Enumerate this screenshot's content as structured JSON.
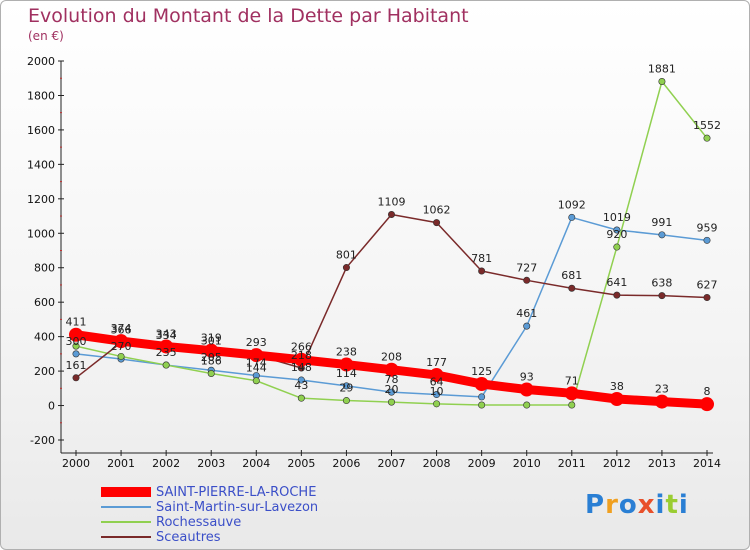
{
  "header": {
    "title": "Evolution du Montant de la Dette par Habitant",
    "subtitle": "(en €)"
  },
  "logo": {
    "text": "Proxiti",
    "letters": [
      "P",
      "r",
      "o",
      "x",
      "i",
      "t",
      "i"
    ],
    "colors": [
      "#2a7fd4",
      "#f0a020",
      "#2a7fd4",
      "#e8502a",
      "#2a7fd4",
      "#9acd32",
      "#2a7fd4"
    ]
  },
  "chart_data": {
    "type": "line",
    "x": [
      2000,
      2001,
      2002,
      2003,
      2004,
      2005,
      2006,
      2007,
      2008,
      2009,
      2010,
      2011,
      2012,
      2013,
      2014
    ],
    "ylim": [
      -200,
      2000
    ],
    "yticks": [
      -200,
      0,
      200,
      400,
      600,
      800,
      1000,
      1200,
      1400,
      1600,
      1800,
      2000
    ],
    "grid": false,
    "legend_position": "bottom-left",
    "series": [
      {
        "name": "SAINT-PIERRE-LA-ROCHE",
        "color": "#ff0000",
        "values": [
          411,
          374,
          343,
          319,
          293,
          266,
          238,
          208,
          177,
          125,
          93,
          71,
          38,
          23,
          8
        ],
        "labels": [
          "411",
          "374",
          "343",
          "319",
          "293",
          "266",
          "238",
          "208",
          "177",
          "125",
          "93",
          "71",
          "38",
          "23",
          "8"
        ]
      },
      {
        "name": "Saint-Martin-sur-Lavezon",
        "color": "#5b9bd5",
        "values": [
          300,
          270,
          235,
          205,
          174,
          148,
          114,
          78,
          64,
          50,
          461,
          1092,
          1019,
          991,
          959
        ],
        "labels": [
          "300",
          "270",
          "235",
          "205",
          "174",
          "148",
          "114",
          "78",
          "64",
          "",
          "461",
          "1092",
          "1019",
          "991",
          "959"
        ]
      },
      {
        "name": "Rochessauve",
        "color": "#90d050",
        "values": [
          345,
          285,
          235,
          186,
          144,
          43,
          29,
          20,
          10,
          3,
          3,
          3,
          920,
          1881,
          1552
        ],
        "labels": [
          "",
          "",
          "",
          "186",
          "144",
          "43",
          "29",
          "20",
          "10",
          "",
          "",
          "",
          "920",
          "1881",
          "1552"
        ]
      },
      {
        "name": "Sceautres",
        "color": "#7a2a2a",
        "values": [
          161,
          366,
          334,
          301,
          293,
          218,
          801,
          1109,
          1062,
          781,
          727,
          681,
          641,
          638,
          627
        ],
        "labels": [
          "161",
          "366",
          "334",
          "301",
          "",
          "218",
          "801",
          "1109",
          "1062",
          "781",
          "727",
          "681",
          "641",
          "638",
          "627"
        ]
      }
    ]
  }
}
